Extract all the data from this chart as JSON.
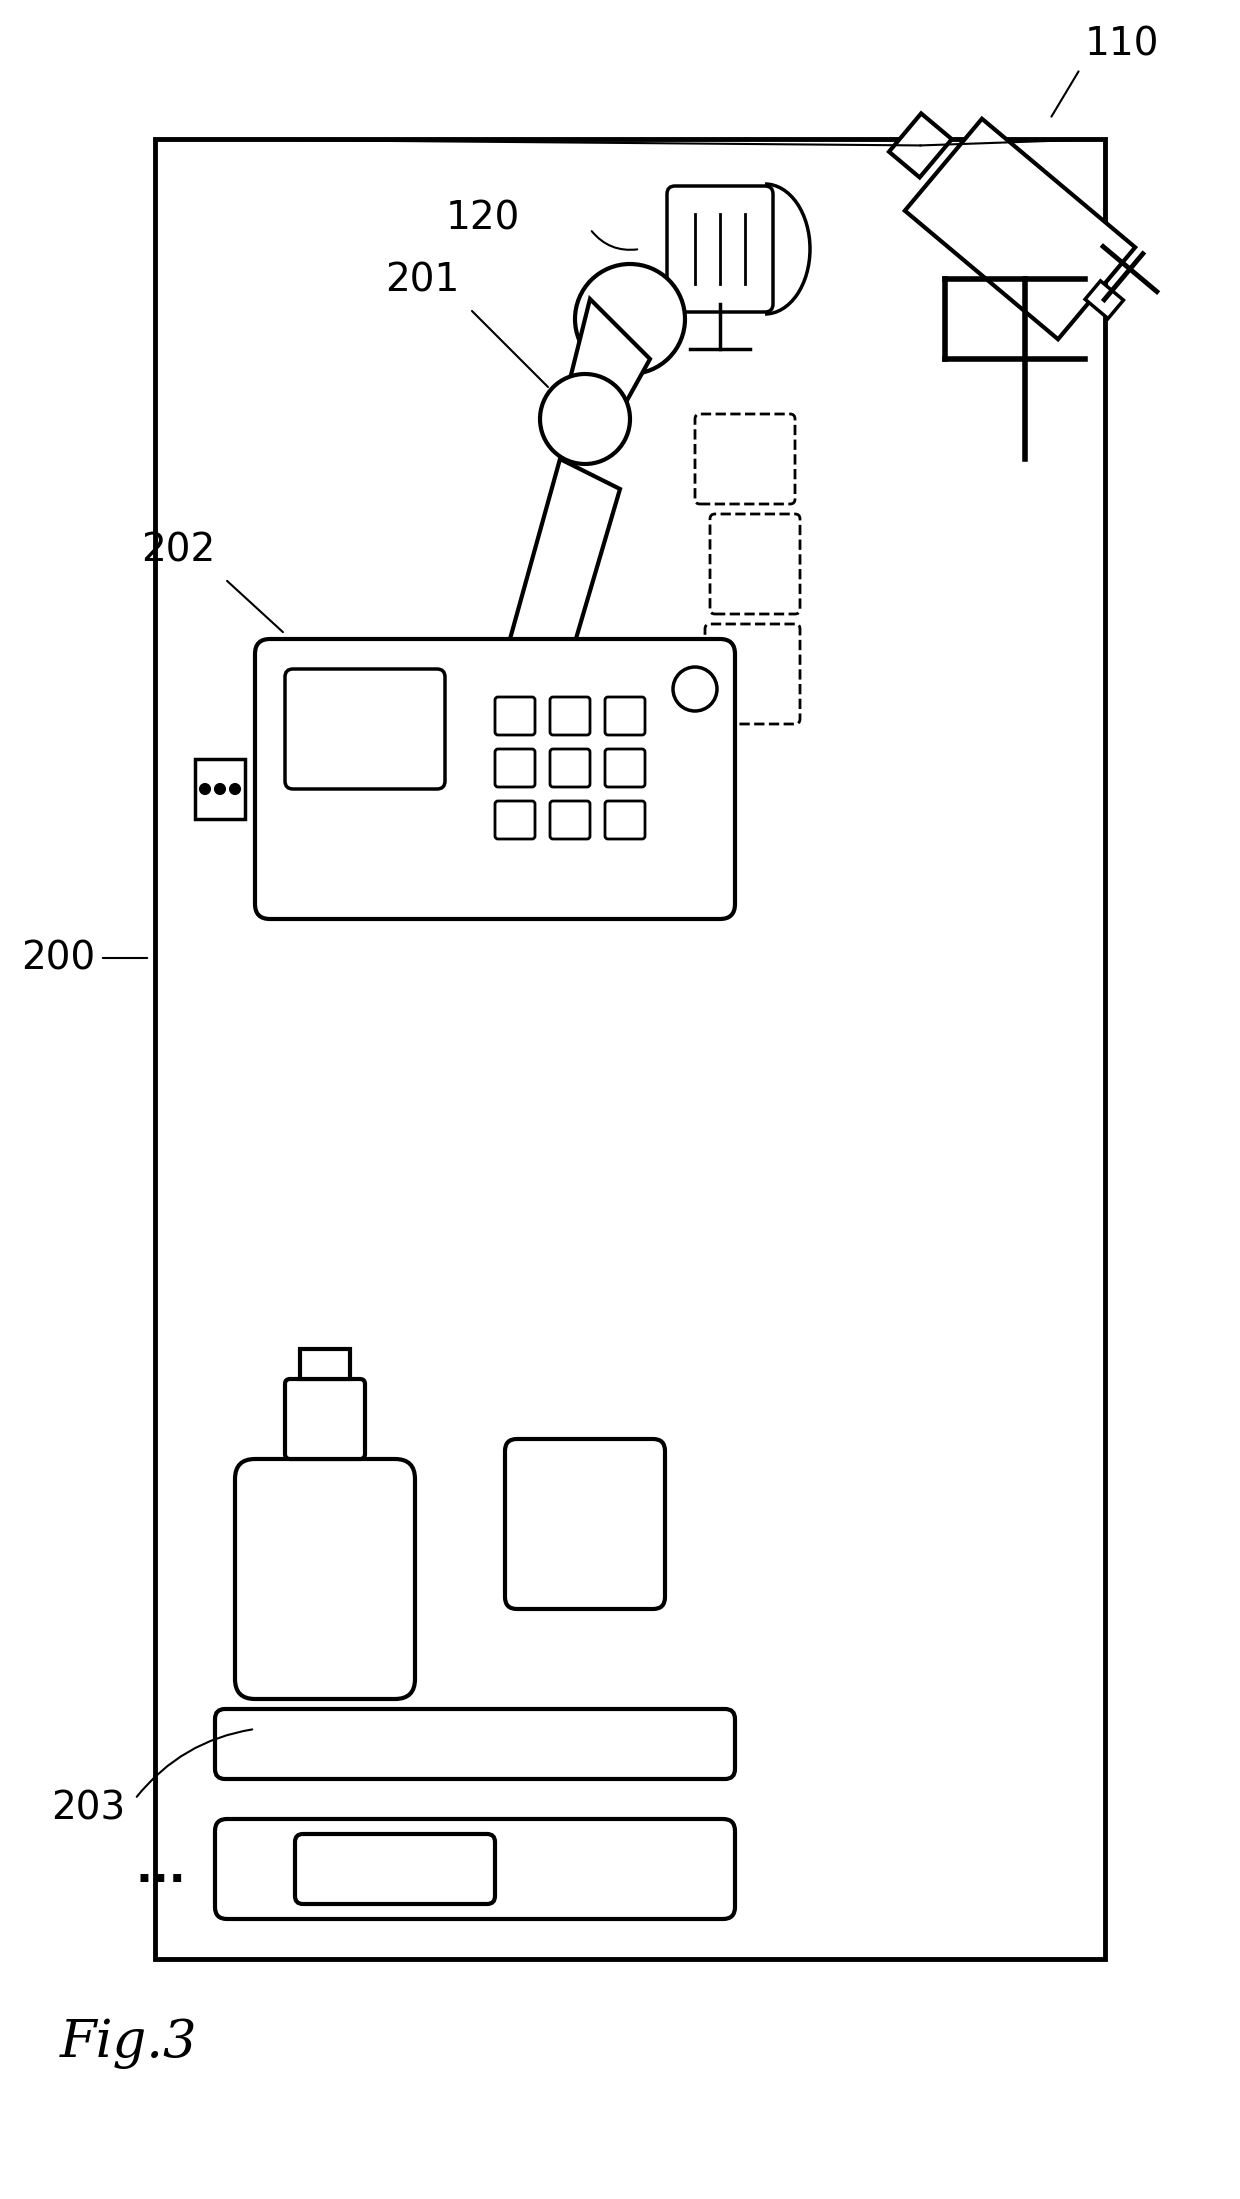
{
  "fig_label": "Fig.3",
  "bg_color": "#ffffff",
  "line_color": "#000000",
  "label_110": "110",
  "label_120": "120",
  "label_200": "200",
  "label_201": "201",
  "label_202": "202",
  "label_203": "203",
  "dots": "..."
}
